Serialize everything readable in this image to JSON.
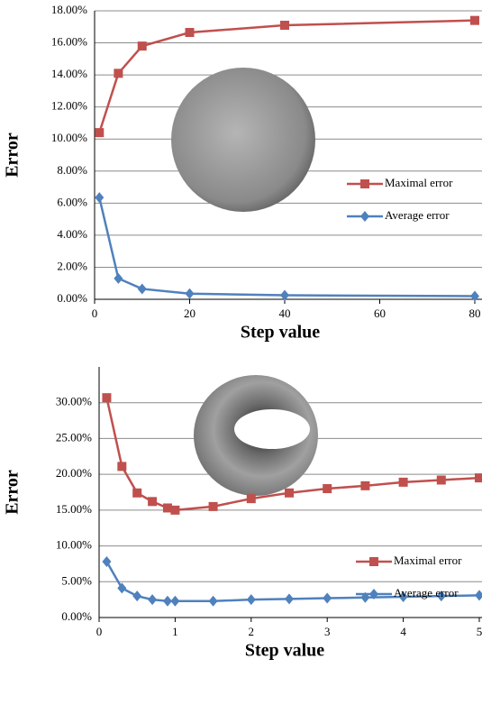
{
  "chart_data": [
    {
      "type": "line",
      "x_label": "Step value",
      "y_label": "Error",
      "x": [
        1,
        5,
        10,
        20,
        40,
        80
      ],
      "series": [
        {
          "name": "Maximal error",
          "color": "#c0504d",
          "marker": "square",
          "values": [
            10.4,
            14.1,
            15.8,
            16.65,
            17.1,
            17.4
          ]
        },
        {
          "name": "Average error",
          "color": "#4f81bd",
          "marker": "diamond",
          "values": [
            6.35,
            1.3,
            0.65,
            0.35,
            0.25,
            0.2
          ]
        }
      ],
      "xlim": [
        0,
        80
      ],
      "xticks": [
        0,
        20,
        40,
        60,
        80
      ],
      "ylim": [
        0,
        18
      ],
      "yticks": [
        {
          "value": 0,
          "label": "0.00%"
        },
        {
          "value": 2,
          "label": "2.00%"
        },
        {
          "value": 4,
          "label": "4.00%"
        },
        {
          "value": 6,
          "label": "6.00%"
        },
        {
          "value": 8,
          "label": "8.00%"
        },
        {
          "value": 10,
          "label": "10.00%"
        },
        {
          "value": 12,
          "label": "12.00%"
        },
        {
          "value": 14,
          "label": "14.00%"
        },
        {
          "value": 16,
          "label": "16.00%"
        },
        {
          "value": 18,
          "label": "18.00%"
        }
      ],
      "grid": true
    },
    {
      "type": "line",
      "x_label": "Step value",
      "y_label": "Error",
      "x": [
        0.1,
        0.3,
        0.5,
        0.7,
        0.9,
        1,
        1.5,
        2,
        2.5,
        3,
        3.5,
        4,
        4.5,
        5
      ],
      "series": [
        {
          "name": "Maximal error",
          "color": "#c0504d",
          "marker": "square",
          "values": [
            30.7,
            21.1,
            17.4,
            16.2,
            15.3,
            15.0,
            15.5,
            16.6,
            17.4,
            18.0,
            18.4,
            18.9,
            19.2,
            19.5
          ]
        },
        {
          "name": "Average error",
          "color": "#4f81bd",
          "marker": "diamond",
          "values": [
            7.8,
            4.1,
            3.0,
            2.5,
            2.3,
            2.3,
            2.3,
            2.5,
            2.6,
            2.7,
            2.8,
            2.9,
            3.0,
            3.1
          ]
        }
      ],
      "xlim": [
        0,
        5
      ],
      "xticks": [
        0,
        1,
        2,
        3,
        4,
        5
      ],
      "ylim": [
        0,
        35
      ],
      "yticks": [
        {
          "value": 0,
          "label": "0.00%"
        },
        {
          "value": 5,
          "label": "5.00%"
        },
        {
          "value": 10,
          "label": "10.00%"
        },
        {
          "value": 15,
          "label": "15.00%"
        },
        {
          "value": 20,
          "label": "20.00%"
        },
        {
          "value": 25,
          "label": "25.00%"
        },
        {
          "value": 30,
          "label": "30.00%"
        }
      ],
      "grid": true
    }
  ]
}
